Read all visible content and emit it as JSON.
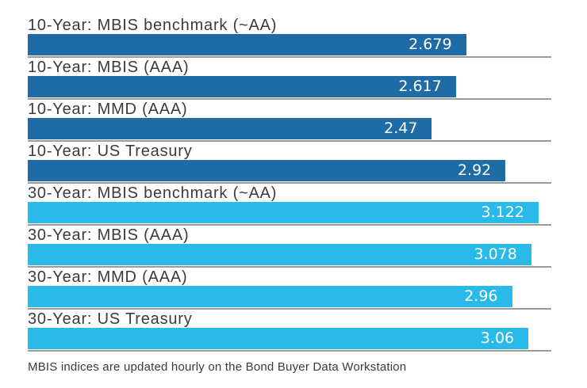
{
  "chart_data": {
    "type": "bar",
    "orientation": "horizontal",
    "title": "",
    "xlabel": "",
    "ylabel": "",
    "xlim": [
      0,
      3.2
    ],
    "grid": "baseline under each bar, extending full chart width",
    "legend_position": "none",
    "categories": [
      "10-Year: MBIS benchmark (~AA)",
      "10-Year: MBIS (AAA)",
      "10-Year: MMD (AAA)",
      "10-Year: US Treasury",
      "30-Year: MBIS benchmark (~AA)",
      "30-Year: MBIS (AAA)",
      "30-Year: MMD (AAA)",
      "30-Year: US Treasury"
    ],
    "values": [
      2.679,
      2.617,
      2.47,
      2.92,
      3.122,
      3.078,
      2.96,
      3.06
    ],
    "value_labels": [
      "2.679",
      "2.617",
      "2.47",
      "2.92",
      "3.122",
      "3.078",
      "2.96",
      "3.06"
    ],
    "series_color_by_group": {
      "ten_year": "#1F6BA6",
      "thirty_year": "#29BAE9"
    },
    "footnote": "MBIS indices are updated hourly on the Bond Buyer Data Workstation"
  },
  "colors": {
    "ten_year": "#1F6BA6",
    "thirty_year": "#29BAE9",
    "baseline": "#9B9B9B",
    "label_text": "#3B3B3B",
    "value_text": "#FFFFFF",
    "background": "#FFFFFF"
  },
  "rows": [
    {
      "label": "10-Year: MBIS benchmark (~AA)",
      "value": 2.679,
      "display": "2.679",
      "group": "ten_year"
    },
    {
      "label": "10-Year: MBIS (AAA)",
      "value": 2.617,
      "display": "2.617",
      "group": "ten_year"
    },
    {
      "label": "10-Year: MMD (AAA)",
      "value": 2.47,
      "display": "2.47",
      "group": "ten_year"
    },
    {
      "label": "10-Year: US Treasury",
      "value": 2.92,
      "display": "2.92",
      "group": "ten_year"
    },
    {
      "label": "30-Year: MBIS benchmark (~AA)",
      "value": 3.122,
      "display": "3.122",
      "group": "thirty_year"
    },
    {
      "label": "30-Year: MBIS (AAA)",
      "value": 3.078,
      "display": "3.078",
      "group": "thirty_year"
    },
    {
      "label": "30-Year: MMD (AAA)",
      "value": 2.96,
      "display": "2.96",
      "group": "thirty_year"
    },
    {
      "label": "30-Year: US Treasury",
      "value": 3.06,
      "display": "3.06",
      "group": "thirty_year"
    }
  ],
  "footnote": "MBIS indices are updated hourly on the Bond Buyer Data Workstation"
}
